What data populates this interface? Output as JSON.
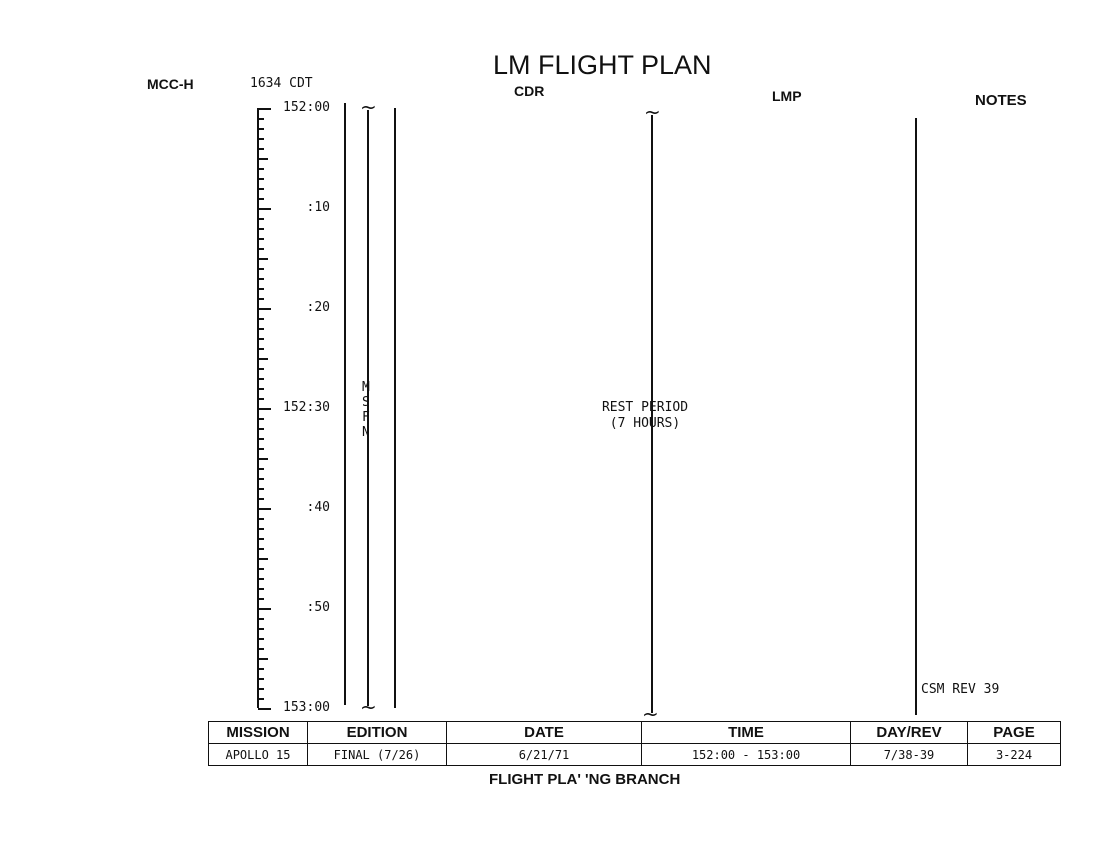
{
  "header": {
    "title": "LM FLIGHT PLAN",
    "station": "MCC-H",
    "local_time": "1634 CDT",
    "columns": {
      "cdr": "CDR",
      "lmp": "LMP",
      "notes": "NOTES"
    }
  },
  "timeline": {
    "labels": [
      "152:00",
      ":10",
      ":20",
      "152:30",
      ":40",
      ":50",
      "153:00"
    ]
  },
  "msfn": [
    "M",
    "S",
    "F",
    "N"
  ],
  "activity": {
    "line1": "REST PERIOD",
    "line2": "(7 HOURS)"
  },
  "notes": {
    "csm_rev": "CSM REV 39"
  },
  "footer": {
    "headers": [
      "MISSION",
      "EDITION",
      "DATE",
      "TIME",
      "DAY/REV",
      "PAGE"
    ],
    "values": [
      "APOLLO 15",
      "FINAL (7/26)",
      "6/21/71",
      "152:00 - 153:00",
      "7/38-39",
      "3-224"
    ],
    "branch": "FLIGHT PLA'  'NG BRANCH"
  }
}
